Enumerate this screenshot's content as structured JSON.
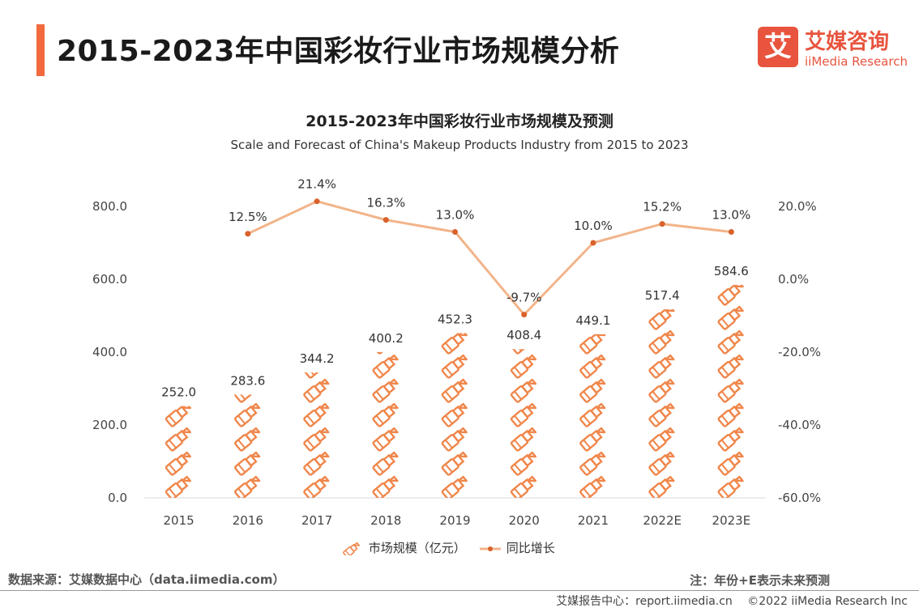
{
  "page": {
    "title": "2015-2023年中国彩妆行业市场规模分析",
    "logo_mark": "艾",
    "logo_cn": "艾媒咨询",
    "logo_en": "iiMedia Research",
    "source": "数据来源：艾媒数据中心（data.iimedia.com）",
    "note": "注：年份+E表示未来预测",
    "footer_center": "艾媒报告中心：report.iimedia.cn",
    "footer_copyright": "©2022  iiMedia Research  Inc"
  },
  "colors": {
    "accent": "#f26a3d",
    "bar_icon": "#f0864a",
    "line": "#f2b48a",
    "marker": "#d9622b"
  },
  "chart_data": {
    "type": "bar",
    "title": "2015-2023年中国彩妆行业市场规模及预测",
    "subtitle": "Scale and Forecast of China's Makeup Products Industry from 2015 to 2023",
    "categories": [
      "2015",
      "2016",
      "2017",
      "2018",
      "2019",
      "2020",
      "2021",
      "2022E",
      "2023E"
    ],
    "series": [
      {
        "name": "市场规模（亿元）",
        "type": "bar",
        "axis": "left",
        "values": [
          252.0,
          283.6,
          344.2,
          400.2,
          452.3,
          408.4,
          449.1,
          517.4,
          584.6
        ],
        "labels": [
          "252.0",
          "283.6",
          "344.2",
          "400.2",
          "452.3",
          "408.4",
          "449.1",
          "517.4",
          "584.6"
        ]
      },
      {
        "name": "同比增长",
        "type": "line",
        "axis": "right",
        "values": [
          null,
          12.5,
          21.4,
          16.3,
          13.0,
          -9.7,
          10.0,
          15.2,
          13.0
        ],
        "labels": [
          "",
          "12.5%",
          "21.4%",
          "16.3%",
          "13.0%",
          "-9.7%",
          "10.0%",
          "15.2%",
          "13.0%"
        ]
      }
    ],
    "y_left": {
      "ylim": [
        0,
        800
      ],
      "ticks": [
        "0.0",
        "200.0",
        "400.0",
        "600.0",
        "800.0"
      ]
    },
    "y_right": {
      "ylim": [
        -60,
        20
      ],
      "ticks": [
        "-60.0%",
        "-40.0%",
        "-20.0%",
        "0.0%",
        "20.0%"
      ]
    },
    "grid": false,
    "legend_position": "bottom"
  }
}
